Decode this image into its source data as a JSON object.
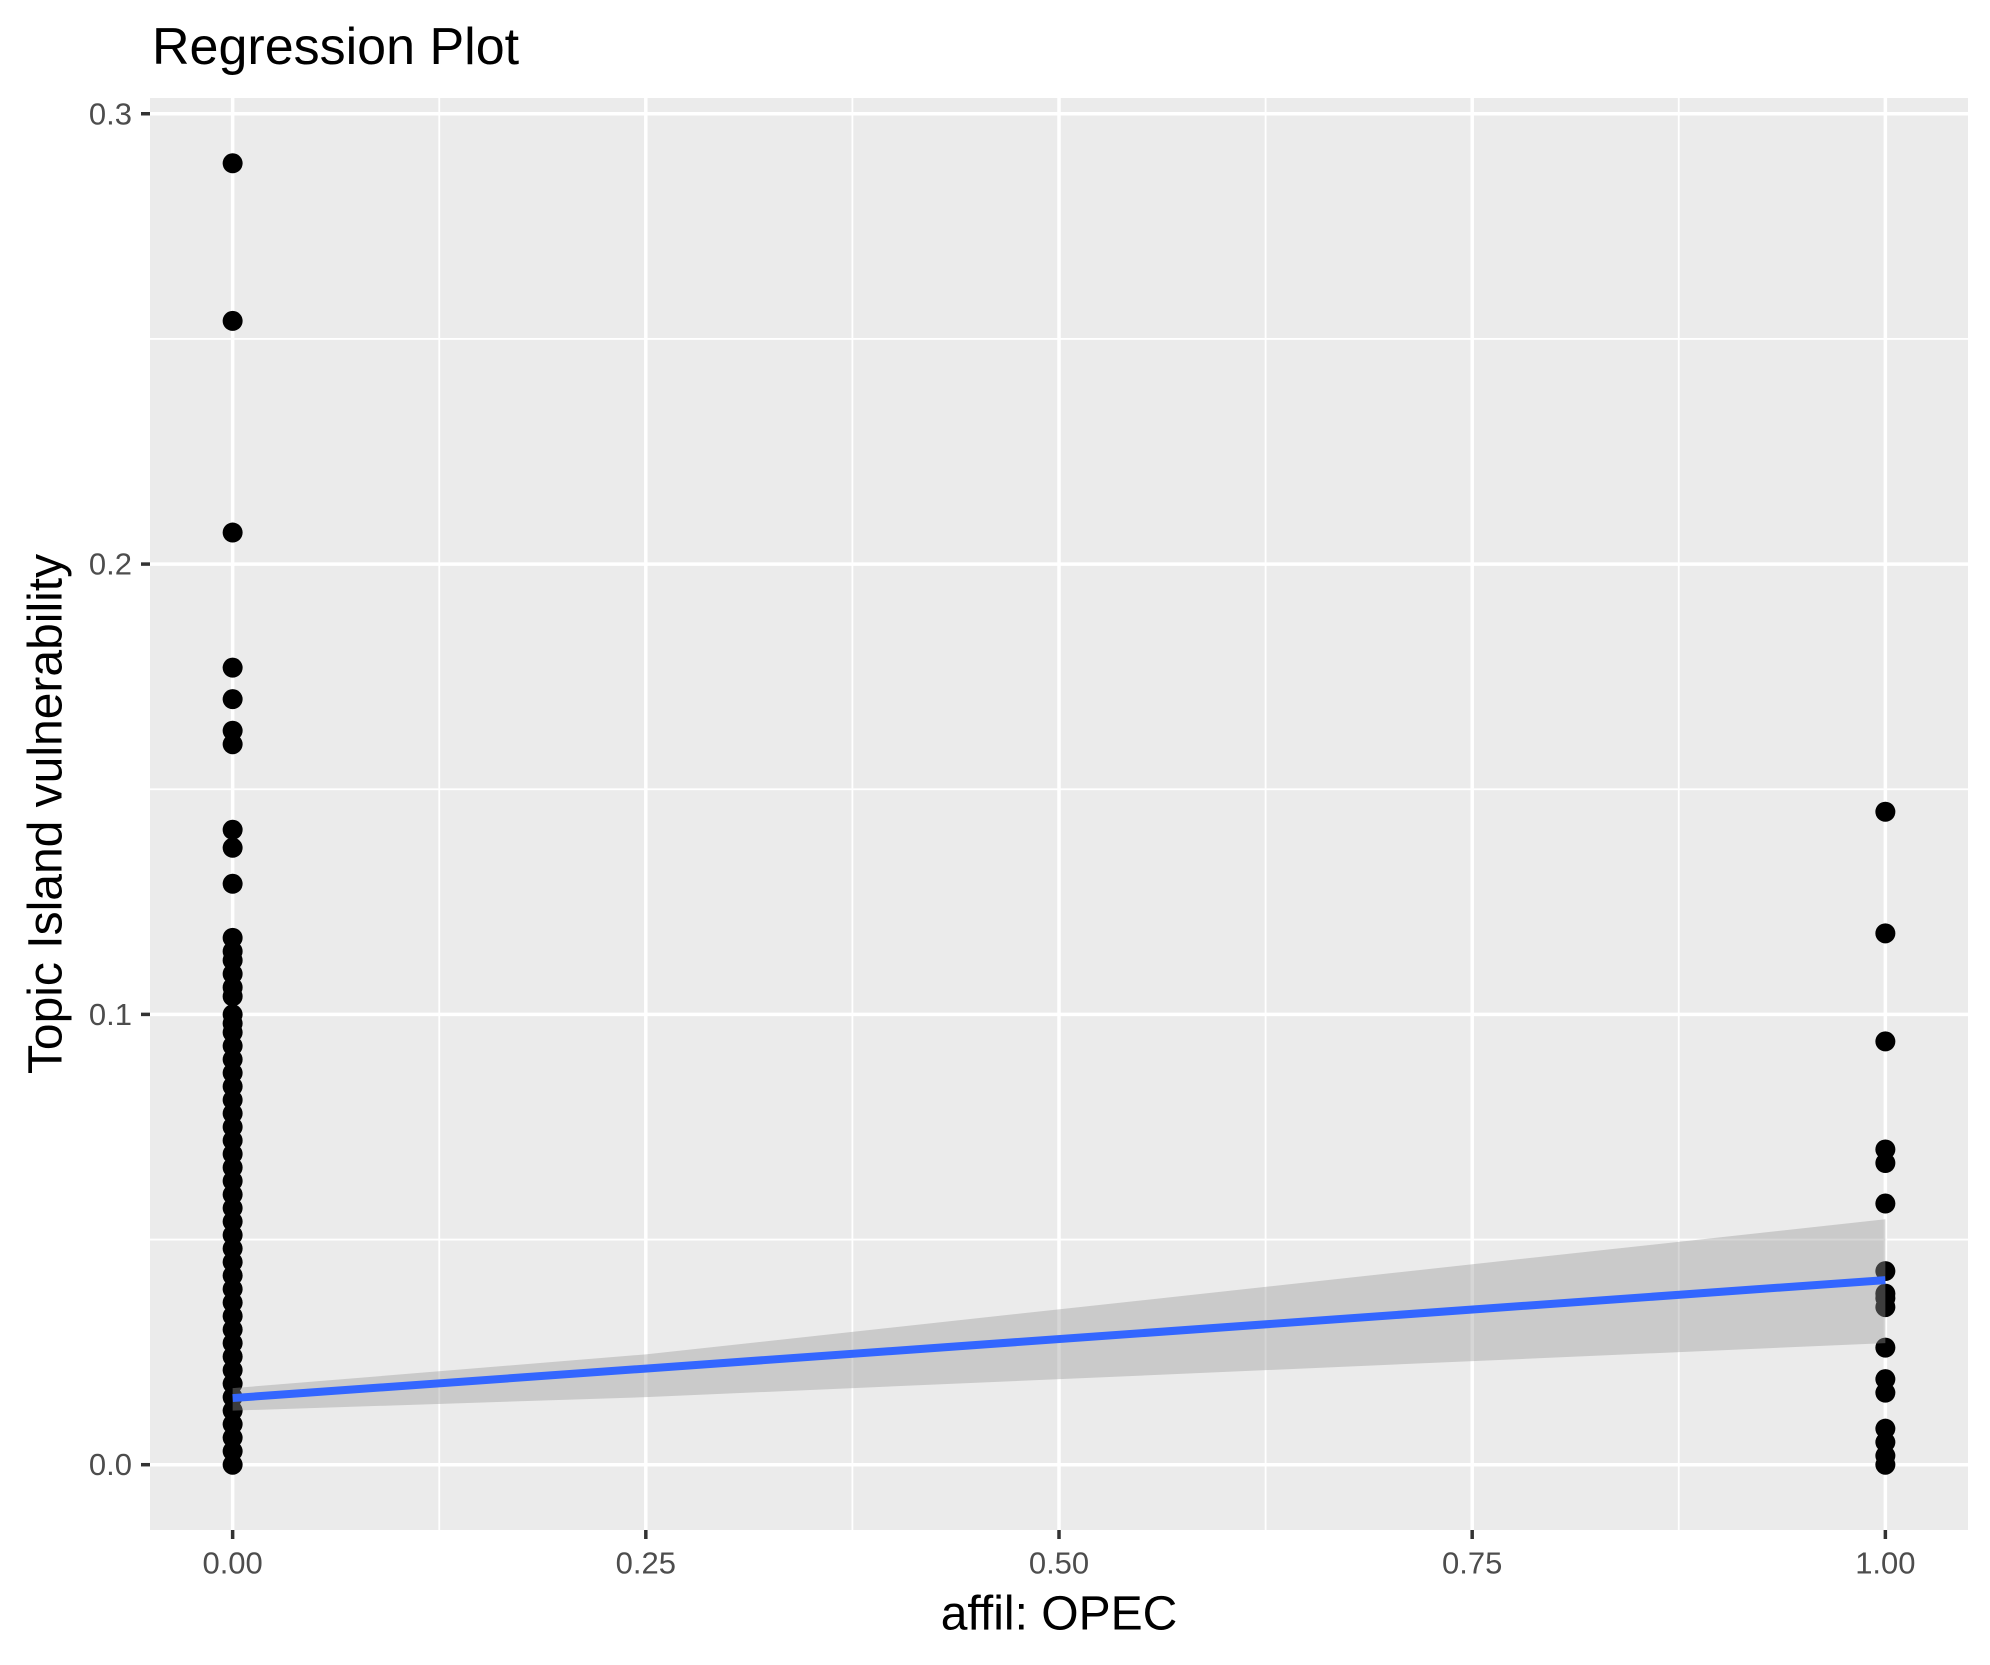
{
  "chart_data": {
    "type": "scatter",
    "title": "Regression Plot",
    "xlabel": "affil: OPEC",
    "ylabel": "Topic Island vulnerability",
    "grid": true,
    "legend": "none",
    "xlim": [
      -0.05,
      1.05
    ],
    "ylim": [
      -0.0145,
      0.3035
    ],
    "x_ticks": [
      {
        "value": 0.0,
        "label": "0.00"
      },
      {
        "value": 0.25,
        "label": "0.25"
      },
      {
        "value": 0.5,
        "label": "0.50"
      },
      {
        "value": 0.75,
        "label": "0.75"
      },
      {
        "value": 1.0,
        "label": "1.00"
      }
    ],
    "y_ticks": [
      {
        "value": 0.0,
        "label": "0.0"
      },
      {
        "value": 0.1,
        "label": "0.1"
      },
      {
        "value": 0.2,
        "label": "0.2"
      },
      {
        "value": 0.3,
        "label": "0.3"
      }
    ],
    "x_minor_breaks": [
      0.125,
      0.375,
      0.625,
      0.875
    ],
    "y_minor_breaks": [
      0.05,
      0.15,
      0.25
    ],
    "series": [
      {
        "name": "affil-0-points",
        "x": 0,
        "y": [
          0.289,
          0.254,
          0.207,
          0.177,
          0.17,
          0.163,
          0.16,
          0.141,
          0.137,
          0.129,
          0.117,
          0.114,
          0.112,
          0.109,
          0.106,
          0.104,
          0.1,
          0.098,
          0.096,
          0.093,
          0.09,
          0.087,
          0.084,
          0.081,
          0.078,
          0.075,
          0.072,
          0.069,
          0.066,
          0.063,
          0.06,
          0.057,
          0.054,
          0.051,
          0.048,
          0.045,
          0.042,
          0.039,
          0.036,
          0.033,
          0.03,
          0.027,
          0.024,
          0.021,
          0.018,
          0.015,
          0.012,
          0.009,
          0.006,
          0.003,
          0.0
        ]
      },
      {
        "name": "affil-1-points",
        "x": 1,
        "y": [
          0.145,
          0.118,
          0.094,
          0.07,
          0.067,
          0.058,
          0.043,
          0.038,
          0.037,
          0.035,
          0.026,
          0.019,
          0.016,
          0.008,
          0.005,
          0.002,
          0.0
        ]
      }
    ],
    "regression": {
      "x": [
        0,
        1
      ],
      "y": [
        0.0148,
        0.041
      ],
      "ci_x": [
        0,
        0.25,
        1
      ],
      "ci_upper": [
        0.017,
        0.0245,
        0.0545
      ],
      "ci_lower": [
        0.012,
        0.015,
        0.027
      ]
    },
    "colors": {
      "point": "#000000",
      "regression_line": "#3366FF",
      "ribbon": "rgba(153,153,153,0.4)",
      "panel_background": "#EBEBEB",
      "gridline": "#FFFFFF",
      "tick_label": "#4D4D4D",
      "tick_mark": "#333333",
      "title": "#000000",
      "axis_title": "#000000"
    }
  }
}
